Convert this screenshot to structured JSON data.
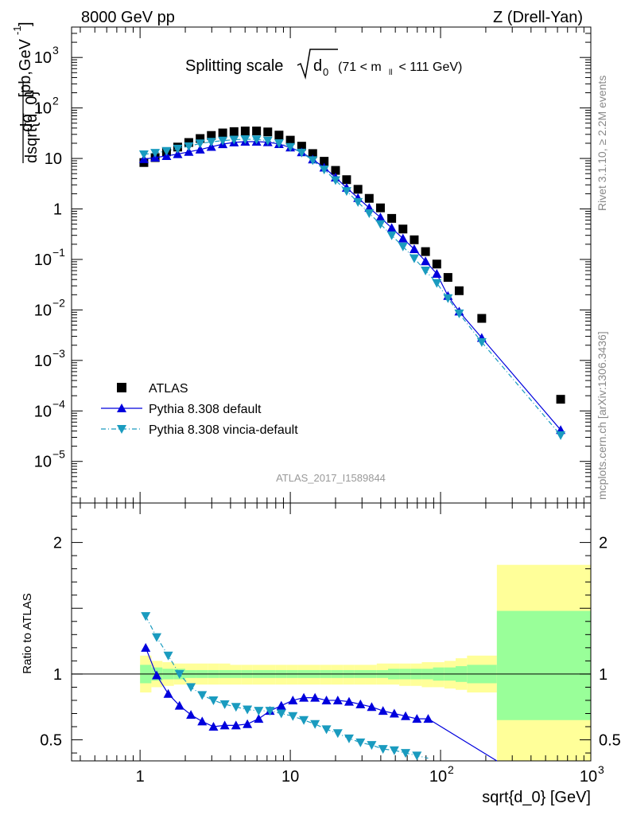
{
  "header": {
    "left": "8000 GeV pp",
    "right": "Z (Drell-Yan)"
  },
  "title": {
    "main": "Splitting scale",
    "sqrt_symbol": "d",
    "sqrt_subscript": "0",
    "range": "(71 < m",
    "range_sub": "ll",
    "range_end": " < 111 GeV)"
  },
  "side_text": {
    "rivet": "Rivet 3.1.10, ≥ 2.2M events",
    "mcplots": "mcplots.cern.ch [arXiv:1306.3436]"
  },
  "watermark": "ATLAS_2017_I1589844",
  "colors": {
    "atlas": "#000000",
    "pythia_default": "#0000dd",
    "pythia_vincia": "#1a9bbf",
    "band_yellow": "#ffff99",
    "band_green": "#99ff99"
  },
  "chart_data": [
    {
      "type": "scatter",
      "panel": "main",
      "ylabel_parts": {
        "num": "dσ",
        "den": "dsqrt{d_0}",
        "unit": " [pb,GeV",
        "unit_exp": "-1",
        "unit_end": "]"
      },
      "xscale": "log",
      "yscale": "log",
      "xlim": [
        0.35,
        1000
      ],
      "ylim": [
        1.5e-06,
        4000
      ],
      "xticks": [
        {
          "v": 1,
          "label": "1"
        },
        {
          "v": 10,
          "label": "10"
        },
        {
          "v": 100,
          "label": "10",
          "exp": "2"
        },
        {
          "v": 1000,
          "label": "10",
          "exp": "3"
        }
      ],
      "yticks": [
        {
          "v": 1e-05,
          "label": "10",
          "exp": "−5"
        },
        {
          "v": 0.0001,
          "label": "10",
          "exp": "−4"
        },
        {
          "v": 0.001,
          "label": "10",
          "exp": "−3"
        },
        {
          "v": 0.01,
          "label": "10",
          "exp": "−2"
        },
        {
          "v": 0.1,
          "label": "10",
          "exp": "−1"
        },
        {
          "v": 1,
          "label": "1"
        },
        {
          "v": 10,
          "label": "10"
        },
        {
          "v": 100,
          "label": "10",
          "exp": "2"
        },
        {
          "v": 1000,
          "label": "10",
          "exp": "3"
        }
      ],
      "legend": [
        "ATLAS",
        "Pythia 8.308 default",
        "Pythia 8.308 vincia-default"
      ],
      "legend_position": "bottom-left",
      "series": [
        {
          "name": "ATLAS",
          "marker": "square",
          "x": [
            1.06,
            1.26,
            1.5,
            1.78,
            2.11,
            2.51,
            2.98,
            3.55,
            4.22,
            5.01,
            5.96,
            7.08,
            8.41,
            10.0,
            11.9,
            14.1,
            16.8,
            20.0,
            23.7,
            28.2,
            33.5,
            39.8,
            47.3,
            56.2,
            66.8,
            79.4,
            94.4,
            112,
            133,
            188,
            630
          ],
          "y": [
            8.3,
            10.4,
            13.5,
            16.8,
            20.7,
            24.8,
            28.5,
            32.0,
            34.0,
            35.0,
            35.0,
            33.5,
            29.0,
            23.0,
            17.5,
            12.5,
            8.8,
            5.8,
            3.8,
            2.45,
            1.62,
            1.05,
            0.65,
            0.4,
            0.245,
            0.143,
            0.081,
            0.044,
            0.024,
            0.0068,
            0.00017
          ]
        },
        {
          "name": "Pythia 8.308 default",
          "marker": "triangle-up",
          "x": [
            1.06,
            1.26,
            1.5,
            1.78,
            2.11,
            2.51,
            2.98,
            3.55,
            4.22,
            5.01,
            5.96,
            7.08,
            8.41,
            10.0,
            11.9,
            14.1,
            16.8,
            20.0,
            23.7,
            28.2,
            33.5,
            39.8,
            47.3,
            56.2,
            66.8,
            79.4,
            94.4,
            112,
            133,
            188,
            630
          ],
          "y": [
            9.7,
            10.4,
            11.2,
            12.2,
            13.5,
            15.0,
            17.0,
            19.2,
            20.8,
            21.5,
            21.5,
            21.0,
            19.3,
            16.5,
            13.3,
            9.6,
            6.6,
            4.2,
            2.63,
            1.65,
            1.05,
            0.68,
            0.42,
            0.26,
            0.16,
            0.092,
            0.052,
            0.019,
            0.0093,
            0.0028,
            4.2e-05
          ]
        },
        {
          "name": "Pythia 8.308 vincia-default",
          "marker": "triangle-down",
          "x": [
            1.06,
            1.26,
            1.5,
            1.78,
            2.11,
            2.51,
            2.98,
            3.55,
            4.22,
            5.01,
            5.96,
            7.08,
            8.41,
            10.0,
            11.9,
            14.1,
            16.8,
            20.0,
            23.7,
            28.2,
            33.5,
            39.8,
            47.3,
            56.2,
            66.8,
            79.4,
            94.4,
            112,
            133,
            188,
            630
          ],
          "y": [
            12.0,
            12.9,
            14.0,
            15.6,
            17.4,
            19.8,
            21.3,
            22.5,
            23.5,
            24.0,
            23.8,
            22.5,
            20.0,
            16.8,
            13.0,
            9.2,
            6.0,
            3.7,
            2.25,
            1.37,
            0.82,
            0.5,
            0.3,
            0.18,
            0.105,
            0.06,
            0.034,
            0.017,
            0.0085,
            0.0023,
            3.3e-05
          ]
        }
      ]
    },
    {
      "type": "line",
      "panel": "ratio",
      "ylabel": "Ratio to ATLAS",
      "xlabel": "sqrt{d_0} [GeV]",
      "xscale": "log",
      "xlim": [
        0.35,
        1000
      ],
      "ylim": [
        0.34,
        2.3
      ],
      "yticks": [
        {
          "v": 0.5,
          "label": "0.5"
        },
        {
          "v": 1,
          "label": "1"
        },
        {
          "v": 2,
          "label": "2"
        }
      ],
      "uncertainty_bands": {
        "edges": [
          1.0,
          1.19,
          1.41,
          1.68,
          2.0,
          2.37,
          2.82,
          3.35,
          3.98,
          4.73,
          5.62,
          6.68,
          7.94,
          9.44,
          11.2,
          13.3,
          15.8,
          18.8,
          22.4,
          26.6,
          31.6,
          37.6,
          44.7,
          53.1,
          63.1,
          75.0,
          89.1,
          106,
          126,
          150,
          237,
          1000
        ],
        "yellow_low": [
          0.86,
          0.9,
          0.91,
          0.92,
          0.92,
          0.92,
          0.92,
          0.92,
          0.92,
          0.92,
          0.92,
          0.92,
          0.92,
          0.92,
          0.92,
          0.92,
          0.92,
          0.92,
          0.92,
          0.92,
          0.92,
          0.92,
          0.92,
          0.91,
          0.91,
          0.9,
          0.9,
          0.89,
          0.88,
          0.86,
          0.18
        ],
        "yellow_high": [
          1.14,
          1.1,
          1.09,
          1.08,
          1.08,
          1.08,
          1.08,
          1.08,
          1.07,
          1.07,
          1.07,
          1.07,
          1.07,
          1.07,
          1.07,
          1.07,
          1.07,
          1.07,
          1.07,
          1.07,
          1.07,
          1.08,
          1.08,
          1.08,
          1.08,
          1.09,
          1.09,
          1.1,
          1.12,
          1.14,
          1.83
        ],
        "green_low": [
          0.93,
          0.95,
          0.96,
          0.96,
          0.97,
          0.97,
          0.97,
          0.97,
          0.97,
          0.97,
          0.97,
          0.97,
          0.97,
          0.97,
          0.97,
          0.97,
          0.97,
          0.97,
          0.97,
          0.97,
          0.97,
          0.97,
          0.96,
          0.96,
          0.96,
          0.96,
          0.95,
          0.95,
          0.94,
          0.93,
          0.65
        ],
        "green_high": [
          1.07,
          1.05,
          1.04,
          1.04,
          1.03,
          1.03,
          1.03,
          1.03,
          1.03,
          1.03,
          1.03,
          1.03,
          1.03,
          1.03,
          1.03,
          1.03,
          1.03,
          1.03,
          1.03,
          1.03,
          1.03,
          1.03,
          1.04,
          1.04,
          1.04,
          1.04,
          1.05,
          1.05,
          1.06,
          1.07,
          1.48
        ]
      },
      "series": [
        {
          "name": "Pythia 8.308 default",
          "x": [
            1.09,
            1.29,
            1.54,
            1.83,
            2.18,
            2.59,
            3.08,
            3.66,
            4.35,
            5.18,
            6.16,
            7.32,
            8.71,
            10.4,
            12.3,
            14.6,
            17.4,
            20.7,
            24.6,
            29.3,
            34.8,
            41.4,
            49.2,
            58.5,
            69.6,
            82.7,
            237
          ],
          "y": [
            1.2,
            0.99,
            0.85,
            0.76,
            0.69,
            0.64,
            0.6,
            0.61,
            0.61,
            0.62,
            0.66,
            0.72,
            0.76,
            0.8,
            0.82,
            0.82,
            0.8,
            0.8,
            0.79,
            0.77,
            0.75,
            0.72,
            0.7,
            0.68,
            0.66,
            0.66,
            0.34
          ]
        },
        {
          "name": "Pythia 8.308 vincia-default",
          "x": [
            1.09,
            1.29,
            1.54,
            1.83,
            2.18,
            2.59,
            3.08,
            3.66,
            4.35,
            5.18,
            6.16,
            7.32,
            8.71,
            10.4,
            12.3,
            14.6,
            17.4,
            20.7,
            24.6,
            29.3,
            34.8,
            41.4,
            49.2,
            58.5,
            69.6,
            82.7
          ],
          "y": [
            1.44,
            1.28,
            1.14,
            1.0,
            0.9,
            0.84,
            0.8,
            0.77,
            0.75,
            0.73,
            0.72,
            0.72,
            0.7,
            0.68,
            0.65,
            0.62,
            0.58,
            0.55,
            0.51,
            0.48,
            0.46,
            0.43,
            0.42,
            0.4,
            0.38,
            0.36
          ]
        }
      ]
    }
  ]
}
